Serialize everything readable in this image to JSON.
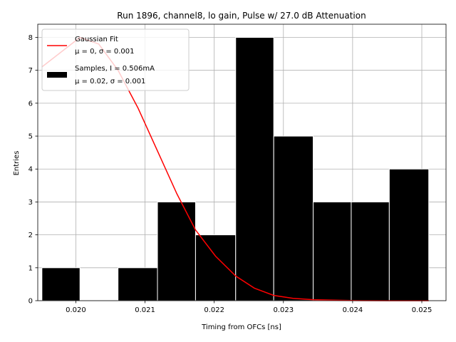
{
  "chart_data": {
    "type": "bar",
    "title": "Run 1896, channel8, lo gain, Pulse w/ 27.0 dB Attenuation",
    "xlabel": "Timing from OFCs [ns]",
    "ylabel": "Entries",
    "xlim": [
      0.01945,
      0.02535
    ],
    "ylim": [
      0,
      8.4
    ],
    "grid": true,
    "xticks": [
      {
        "value": 0.02,
        "label": "0.020"
      },
      {
        "value": 0.021,
        "label": "0.021"
      },
      {
        "value": 0.022,
        "label": "0.022"
      },
      {
        "value": 0.023,
        "label": "0.023"
      },
      {
        "value": 0.024,
        "label": "0.024"
      },
      {
        "value": 0.025,
        "label": "0.025"
      }
    ],
    "yticks": [
      {
        "value": 0,
        "label": "0"
      },
      {
        "value": 1,
        "label": "1"
      },
      {
        "value": 2,
        "label": "2"
      },
      {
        "value": 3,
        "label": "3"
      },
      {
        "value": 4,
        "label": "4"
      },
      {
        "value": 5,
        "label": "5"
      },
      {
        "value": 6,
        "label": "6"
      },
      {
        "value": 7,
        "label": "7"
      },
      {
        "value": 8,
        "label": "8"
      }
    ],
    "histogram": {
      "name": "Samples, I = 0.506mA",
      "stats": "μ = 0.02, σ = 0.001",
      "color": "#000000",
      "bins": [
        {
          "x0": 0.01951,
          "x1": 0.02006,
          "count": 1
        },
        {
          "x0": 0.02006,
          "x1": 0.02061,
          "count": 0
        },
        {
          "x0": 0.02061,
          "x1": 0.02118,
          "count": 1
        },
        {
          "x0": 0.02118,
          "x1": 0.02173,
          "count": 3
        },
        {
          "x0": 0.02173,
          "x1": 0.02231,
          "count": 2
        },
        {
          "x0": 0.02231,
          "x1": 0.02286,
          "count": 8
        },
        {
          "x0": 0.02286,
          "x1": 0.02343,
          "count": 5
        },
        {
          "x0": 0.02343,
          "x1": 0.02398,
          "count": 3
        },
        {
          "x0": 0.02398,
          "x1": 0.02453,
          "count": 3
        },
        {
          "x0": 0.02453,
          "x1": 0.0251,
          "count": 4
        }
      ]
    },
    "fit": {
      "name": "Gaussian Fit",
      "stats": "μ = 0, σ = 0.001",
      "color": "#ff0000",
      "x": [
        0.01951,
        0.02006,
        0.02033,
        0.02061,
        0.0209,
        0.02118,
        0.02146,
        0.02173,
        0.02202,
        0.02231,
        0.02258,
        0.02286,
        0.02314,
        0.02343,
        0.02398,
        0.02453,
        0.0251
      ],
      "y": [
        7.1,
        8.0,
        7.8,
        7.0,
        5.85,
        4.55,
        3.25,
        2.15,
        1.35,
        0.75,
        0.38,
        0.16,
        0.07,
        0.03,
        0.005,
        0.001,
        0.0
      ]
    },
    "legend_position": "top-left"
  }
}
